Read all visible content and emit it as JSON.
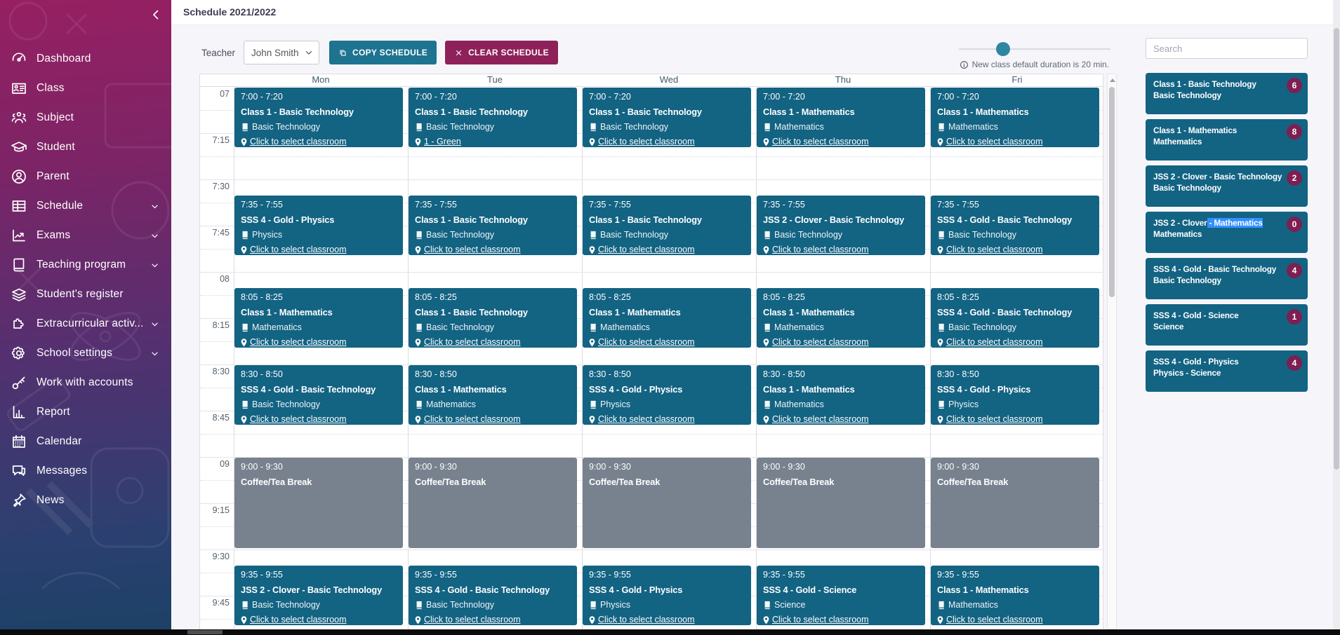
{
  "app": {
    "title": "Schedule 2021/2022"
  },
  "sidebar": {
    "collapse_icon": "chevron-left-icon",
    "items": [
      {
        "label": "Dashboard",
        "icon": "dashboard-icon",
        "expandable": false
      },
      {
        "label": "Class",
        "icon": "class-icon",
        "expandable": false
      },
      {
        "label": "Subject",
        "icon": "subject-icon",
        "expandable": false
      },
      {
        "label": "Student",
        "icon": "student-icon",
        "expandable": false
      },
      {
        "label": "Parent",
        "icon": "parent-icon",
        "expandable": false
      },
      {
        "label": "Schedule",
        "icon": "schedule-icon",
        "expandable": true
      },
      {
        "label": "Exams",
        "icon": "exams-icon",
        "expandable": true
      },
      {
        "label": "Teaching program",
        "icon": "teaching-program-icon",
        "expandable": true
      },
      {
        "label": "Student's register",
        "icon": "students-register-icon",
        "expandable": false
      },
      {
        "label": "Extracurricular activ...",
        "icon": "extracurricular-icon",
        "expandable": true
      },
      {
        "label": "School settings",
        "icon": "school-settings-icon",
        "expandable": true
      },
      {
        "label": "Work with accounts",
        "icon": "work-with-accounts-icon",
        "expandable": false
      },
      {
        "label": "Report",
        "icon": "report-icon",
        "expandable": false
      },
      {
        "label": "Calendar",
        "icon": "calendar-icon",
        "expandable": false
      },
      {
        "label": "Messages",
        "icon": "messages-icon",
        "expandable": false
      },
      {
        "label": "News",
        "icon": "news-icon",
        "expandable": false
      }
    ]
  },
  "toolbar": {
    "teacher_label": "Teacher",
    "teacher_value": "John Smith",
    "copy_button": "COPY SCHEDULE",
    "clear_button": "CLEAR SCHEDULE",
    "duration_note": "New class default duration is 20 min.",
    "slider_position_pct": 29
  },
  "calendar": {
    "days": [
      "Mon",
      "Tue",
      "Wed",
      "Thu",
      "Fri"
    ],
    "time_labels": [
      "07",
      "7:15",
      "7:30",
      "7:45",
      "08",
      "8:15",
      "8:30",
      "8:45",
      "09",
      "9:15",
      "9:30",
      "9:45"
    ],
    "default_link": "Click to select classroom",
    "events": [
      {
        "day": 0,
        "time": "7:00 - 7:20",
        "start": 0,
        "dur": 20,
        "type": "class",
        "title": "Class 1 - Basic Technology",
        "subject": "Basic Technology",
        "link": "Click to select classroom"
      },
      {
        "day": 0,
        "time": "7:35 - 7:55",
        "start": 35,
        "dur": 20,
        "type": "class",
        "title": "SSS 4 - Gold - Physics",
        "subject": "Physics",
        "link": "Click to select classroom"
      },
      {
        "day": 0,
        "time": "8:05 - 8:25",
        "start": 65,
        "dur": 20,
        "type": "class",
        "title": "Class 1 - Mathematics",
        "subject": "Mathematics",
        "link": "Click to select classroom"
      },
      {
        "day": 0,
        "time": "8:30 - 8:50",
        "start": 90,
        "dur": 20,
        "type": "class",
        "title": "SSS 4 - Gold - Basic Technology",
        "subject": "Basic Technology",
        "link": "Click to select classroom"
      },
      {
        "day": 0,
        "time": "9:00 - 9:30",
        "start": 120,
        "dur": 30,
        "type": "break",
        "title": "Coffee/Tea Break"
      },
      {
        "day": 0,
        "time": "9:35 - 9:55",
        "start": 155,
        "dur": 20,
        "type": "class",
        "title": "JSS 2 - Clover - Basic Technology",
        "subject": "Basic Technology",
        "link": "Click to select classroom"
      },
      {
        "day": 1,
        "time": "7:00 - 7:20",
        "start": 0,
        "dur": 20,
        "type": "class",
        "title": "Class 1 - Basic Technology",
        "subject": "Basic Technology",
        "link": "1 - Green"
      },
      {
        "day": 1,
        "time": "7:35 - 7:55",
        "start": 35,
        "dur": 20,
        "type": "class",
        "title": "Class 1 - Basic Technology",
        "subject": "Basic Technology",
        "link": "Click to select classroom"
      },
      {
        "day": 1,
        "time": "8:05 - 8:25",
        "start": 65,
        "dur": 20,
        "type": "class",
        "title": "Class 1 - Basic Technology",
        "subject": "Basic Technology",
        "link": "Click to select classroom"
      },
      {
        "day": 1,
        "time": "8:30 - 8:50",
        "start": 90,
        "dur": 20,
        "type": "class",
        "title": "Class 1 - Mathematics",
        "subject": "Mathematics",
        "link": "Click to select classroom"
      },
      {
        "day": 1,
        "time": "9:00 - 9:30",
        "start": 120,
        "dur": 30,
        "type": "break",
        "title": "Coffee/Tea Break"
      },
      {
        "day": 1,
        "time": "9:35 - 9:55",
        "start": 155,
        "dur": 20,
        "type": "class",
        "title": "SSS 4 - Gold - Basic Technology",
        "subject": "Basic Technology",
        "link": "Click to select classroom"
      },
      {
        "day": 2,
        "time": "7:00 - 7:20",
        "start": 0,
        "dur": 20,
        "type": "class",
        "title": "Class 1 - Basic Technology",
        "subject": "Basic Technology",
        "link": "Click to select classroom"
      },
      {
        "day": 2,
        "time": "7:35 - 7:55",
        "start": 35,
        "dur": 20,
        "type": "class",
        "title": "Class 1 - Basic Technology",
        "subject": "Basic Technology",
        "link": "Click to select classroom"
      },
      {
        "day": 2,
        "time": "8:05 - 8:25",
        "start": 65,
        "dur": 20,
        "type": "class",
        "title": "Class 1 - Mathematics",
        "subject": "Mathematics",
        "link": "Click to select classroom"
      },
      {
        "day": 2,
        "time": "8:30 - 8:50",
        "start": 90,
        "dur": 20,
        "type": "class",
        "title": "SSS 4 - Gold - Physics",
        "subject": "Physics",
        "link": "Click to select classroom"
      },
      {
        "day": 2,
        "time": "9:00 - 9:30",
        "start": 120,
        "dur": 30,
        "type": "break",
        "title": "Coffee/Tea Break"
      },
      {
        "day": 2,
        "time": "9:35 - 9:55",
        "start": 155,
        "dur": 20,
        "type": "class",
        "title": "SSS 4 - Gold - Physics",
        "subject": "Physics",
        "link": "Click to select classroom"
      },
      {
        "day": 3,
        "time": "7:00 - 7:20",
        "start": 0,
        "dur": 20,
        "type": "class",
        "title": "Class 1 - Mathematics",
        "subject": "Mathematics",
        "link": "Click to select classroom"
      },
      {
        "day": 3,
        "time": "7:35 - 7:55",
        "start": 35,
        "dur": 20,
        "type": "class",
        "title": "JSS 2 - Clover - Basic Technology",
        "subject": "Basic Technology",
        "link": "Click to select classroom"
      },
      {
        "day": 3,
        "time": "8:05 - 8:25",
        "start": 65,
        "dur": 20,
        "type": "class",
        "title": "Class 1 - Mathematics",
        "subject": "Mathematics",
        "link": "Click to select classroom"
      },
      {
        "day": 3,
        "time": "8:30 - 8:50",
        "start": 90,
        "dur": 20,
        "type": "class",
        "title": "Class 1 - Mathematics",
        "subject": "Mathematics",
        "link": "Click to select classroom"
      },
      {
        "day": 3,
        "time": "9:00 - 9:30",
        "start": 120,
        "dur": 30,
        "type": "break",
        "title": "Coffee/Tea Break"
      },
      {
        "day": 3,
        "time": "9:35 - 9:55",
        "start": 155,
        "dur": 20,
        "type": "class",
        "title": "SSS 4 - Gold - Science",
        "subject": "Science",
        "link": "Click to select classroom"
      },
      {
        "day": 4,
        "time": "7:00 - 7:20",
        "start": 0,
        "dur": 20,
        "type": "class",
        "title": "Class 1 - Mathematics",
        "subject": "Mathematics",
        "link": "Click to select classroom"
      },
      {
        "day": 4,
        "time": "7:35 - 7:55",
        "start": 35,
        "dur": 20,
        "type": "class",
        "title": "SSS 4 - Gold - Basic Technology",
        "subject": "Basic Technology",
        "link": "Click to select classroom"
      },
      {
        "day": 4,
        "time": "8:05 - 8:25",
        "start": 65,
        "dur": 20,
        "type": "class",
        "title": "SSS 4 - Gold - Basic Technology",
        "subject": "Basic Technology",
        "link": "Click to select classroom"
      },
      {
        "day": 4,
        "time": "8:30 - 8:50",
        "start": 90,
        "dur": 20,
        "type": "class",
        "title": "SSS 4 - Gold - Physics",
        "subject": "Physics",
        "link": "Click to select classroom"
      },
      {
        "day": 4,
        "time": "9:00 - 9:30",
        "start": 120,
        "dur": 30,
        "type": "break",
        "title": "Coffee/Tea Break"
      },
      {
        "day": 4,
        "time": "9:35 - 9:55",
        "start": 155,
        "dur": 20,
        "type": "class",
        "title": "Class 1 - Mathematics",
        "subject": "Mathematics",
        "link": "Click to select classroom"
      }
    ]
  },
  "right_panel": {
    "search_placeholder": "Search",
    "classes": [
      {
        "title": "Class 1 - Basic Technology",
        "subtitle": "Basic Technology",
        "count": "6"
      },
      {
        "title": "Class 1 - Mathematics",
        "subtitle": "Mathematics",
        "count": "8"
      },
      {
        "title": "JSS 2 - Clover - Basic Technology",
        "subtitle": "Basic Technology",
        "count": "2"
      },
      {
        "title": "JSS 2 - Clover",
        "title_highlight": " - Mathematics",
        "subtitle": "Mathematics",
        "count": "0"
      },
      {
        "title": "SSS 4 - Gold - Basic Technology",
        "subtitle": "Basic Technology",
        "count": "4"
      },
      {
        "title": "SSS 4 - Gold - Science",
        "subtitle": "Science",
        "count": "1"
      },
      {
        "title": "SSS 4 - Gold - Physics",
        "subtitle": "Physics - Science",
        "count": "4"
      }
    ]
  },
  "colors": {
    "event_teal": "#136383",
    "break_gray": "#78828e",
    "copy_button_teal": "#1d7390",
    "clear_button_magenta": "#8e2159",
    "badge_magenta": "#7d1f52",
    "selection_blue": "#3390ff",
    "sidebar_gradient_top": "#962062",
    "sidebar_gradient_bottom": "#1c4166",
    "slider_knob_teal": "#2e86a2"
  }
}
